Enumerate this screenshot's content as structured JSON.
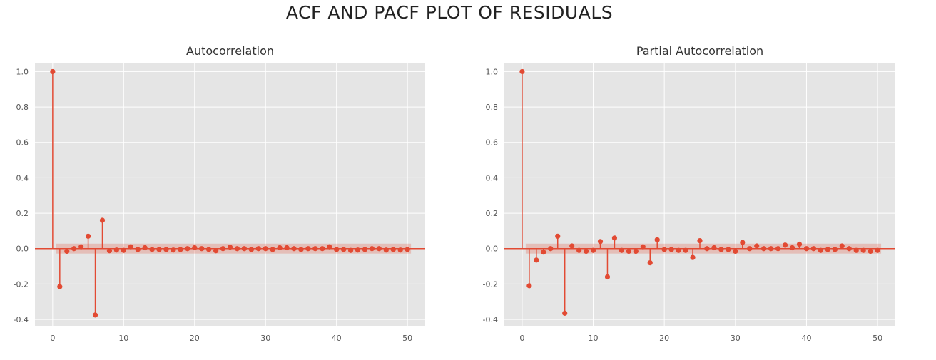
{
  "figure": {
    "suptitle": "ACF AND PACF PLOT OF RESIDUALS"
  },
  "colors": {
    "background": "#e5e5e5",
    "grid": "#ffffff",
    "series": "#e24a33",
    "band": "#e24a33"
  },
  "chart_data": [
    {
      "type": "stem",
      "title": "Autocorrelation",
      "xlabel": "",
      "ylabel": "",
      "xlim": [
        -2.5,
        52.5
      ],
      "ylim": [
        -0.44,
        1.05
      ],
      "xticks": [
        "0",
        "10",
        "20",
        "30",
        "40",
        "50"
      ],
      "yticks": [
        "-0.4",
        "-0.2",
        "0.0",
        "0.2",
        "0.4",
        "0.6",
        "0.8",
        "1.0"
      ],
      "grid": true,
      "confidence_band": 0.028,
      "lags": [
        0,
        1,
        2,
        3,
        4,
        5,
        6,
        7,
        8,
        9,
        10,
        11,
        12,
        13,
        14,
        15,
        16,
        17,
        18,
        19,
        20,
        21,
        22,
        23,
        24,
        25,
        26,
        27,
        28,
        29,
        30,
        31,
        32,
        33,
        34,
        35,
        36,
        37,
        38,
        39,
        40,
        41,
        42,
        43,
        44,
        45,
        46,
        47,
        48,
        49,
        50
      ],
      "values": [
        1.0,
        -0.215,
        -0.015,
        0.0,
        0.01,
        0.07,
        -0.375,
        0.16,
        -0.012,
        -0.008,
        -0.01,
        0.01,
        -0.005,
        0.005,
        -0.005,
        -0.005,
        -0.005,
        -0.008,
        -0.005,
        0.0,
        0.005,
        0.0,
        -0.005,
        -0.012,
        0.0,
        0.008,
        0.0,
        0.0,
        -0.005,
        0.0,
        0.0,
        -0.005,
        0.005,
        0.005,
        0.0,
        -0.005,
        0.0,
        0.0,
        0.0,
        0.01,
        -0.005,
        -0.005,
        -0.01,
        -0.008,
        -0.005,
        0.0,
        0.0,
        -0.008,
        -0.005,
        -0.008,
        -0.005
      ]
    },
    {
      "type": "stem",
      "title": "Partial Autocorrelation",
      "xlabel": "",
      "ylabel": "",
      "xlim": [
        -2.5,
        52.5
      ],
      "ylim": [
        -0.44,
        1.05
      ],
      "xticks": [
        "0",
        "10",
        "20",
        "30",
        "40",
        "50"
      ],
      "yticks": [
        "-0.4",
        "-0.2",
        "0.0",
        "0.2",
        "0.4",
        "0.6",
        "0.8",
        "1.0"
      ],
      "grid": true,
      "confidence_band": 0.028,
      "lags": [
        0,
        1,
        2,
        3,
        4,
        5,
        6,
        7,
        8,
        9,
        10,
        11,
        12,
        13,
        14,
        15,
        16,
        17,
        18,
        19,
        20,
        21,
        22,
        23,
        24,
        25,
        26,
        27,
        28,
        29,
        30,
        31,
        32,
        33,
        34,
        35,
        36,
        37,
        38,
        39,
        40,
        41,
        42,
        43,
        44,
        45,
        46,
        47,
        48,
        49,
        50
      ],
      "values": [
        1.0,
        -0.21,
        -0.065,
        -0.02,
        0.0,
        0.07,
        -0.365,
        0.015,
        -0.01,
        -0.015,
        -0.01,
        0.04,
        -0.16,
        0.06,
        -0.01,
        -0.015,
        -0.015,
        0.01,
        -0.08,
        0.05,
        -0.005,
        -0.005,
        -0.01,
        -0.01,
        -0.05,
        0.045,
        0.0,
        0.005,
        -0.005,
        -0.005,
        -0.015,
        0.035,
        0.0,
        0.015,
        0.0,
        0.0,
        0.0,
        0.02,
        0.005,
        0.025,
        0.0,
        0.0,
        -0.01,
        -0.005,
        -0.005,
        0.015,
        0.0,
        -0.01,
        -0.01,
        -0.015,
        -0.01
      ]
    }
  ]
}
